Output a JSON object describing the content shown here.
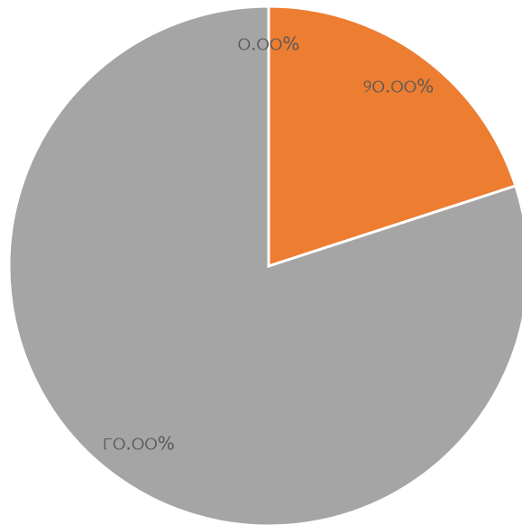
{
  "chart_data": {
    "type": "pie",
    "categories": [
      null,
      null,
      null
    ],
    "values": [
      0,
      20,
      80
    ],
    "value_labels": [
      "୦.୦୦%",
      "୨୦.୦୦%",
      "୮୦.୦୦%"
    ],
    "colors": [
      "#4472c4",
      "#ed7d31",
      "#a5a5a5"
    ]
  }
}
